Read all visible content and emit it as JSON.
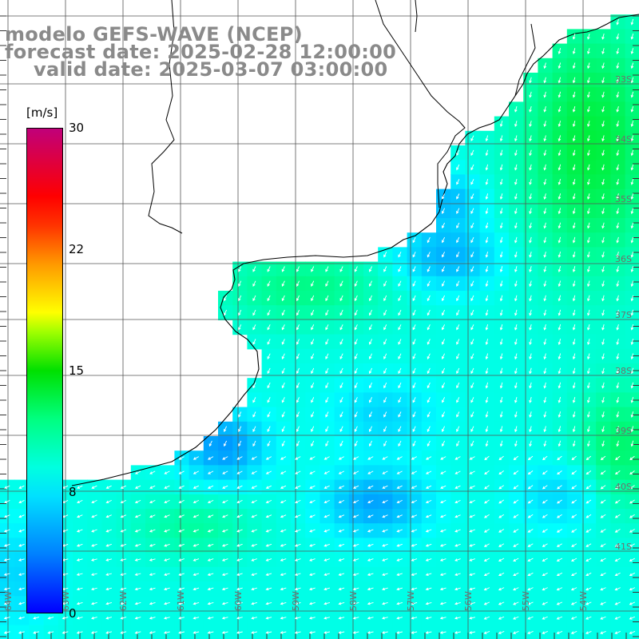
{
  "title": {
    "line1": "modelo GEFS-WAVE (NCEP)",
    "line2": "forecast date: 2025-02-28 12:00:00",
    "line3": "valid date: 2025-03-07 03:00:00"
  },
  "colorbar": {
    "unit": "[m/s]",
    "ticks": [
      {
        "value": 30,
        "label": "30"
      },
      {
        "value": 22,
        "label": "22"
      },
      {
        "value": 15,
        "label": "15"
      },
      {
        "value": 8,
        "label": "8"
      },
      {
        "value": 0,
        "label": "0"
      }
    ],
    "range": [
      0,
      30
    ]
  },
  "lat_labels": [
    "33S",
    "34S",
    "35S",
    "36S",
    "37S",
    "38S",
    "39S",
    "40S",
    "41S"
  ],
  "lon_labels": [
    "64W",
    "63W",
    "62W",
    "61W",
    "60W",
    "59W",
    "58W",
    "57W",
    "56W",
    "55W",
    "54W"
  ],
  "colors": {
    "title_gray": "#8a8a8a",
    "grid": "#555555",
    "coast": "#000000",
    "arrow": "#ffffff"
  }
}
